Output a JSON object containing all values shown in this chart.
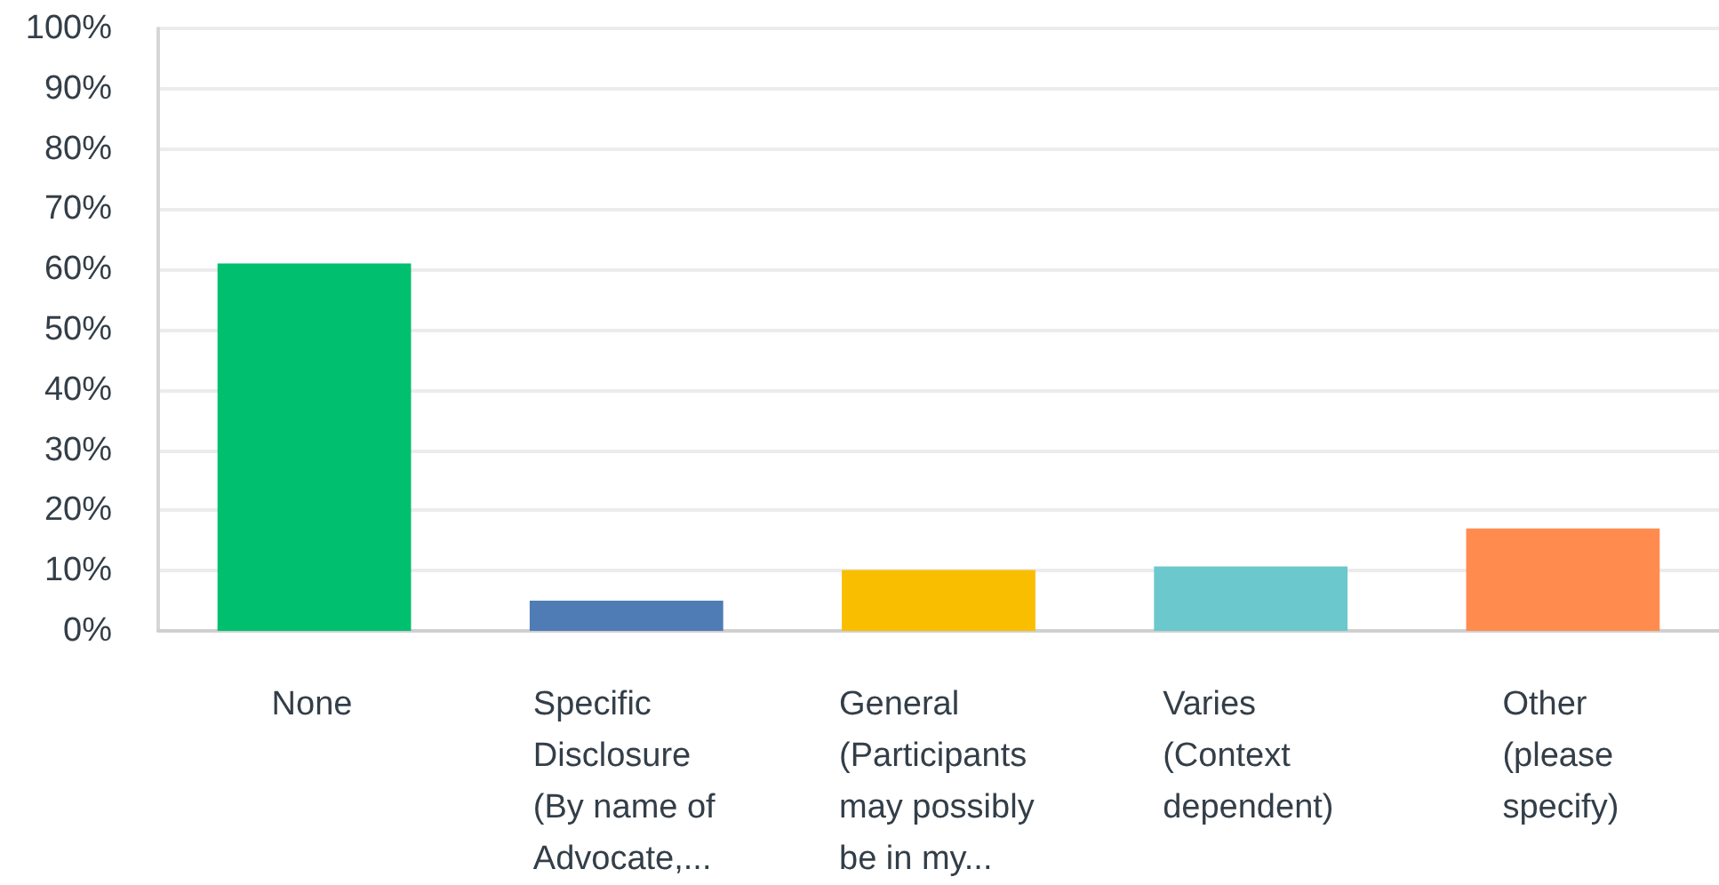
{
  "chart_data": {
    "type": "bar",
    "categories": [
      "None",
      "Specific\nDisclosure\n(By name of\nAdvocate,...",
      "General\n(Participants\nmay possibly\nbe in my...",
      "Varies\n(Context\ndependent)",
      "Other\n(please\nspecify)"
    ],
    "values": [
      61,
      5,
      10.1,
      10.7,
      17
    ],
    "colors": [
      "#00bf6f",
      "#507cb6",
      "#f9be00",
      "#6bc8cd",
      "#ff8b4f"
    ],
    "ylim": [
      0,
      100
    ],
    "yticks": [
      {
        "value": 0,
        "label": "0%"
      },
      {
        "value": 10,
        "label": "10%"
      },
      {
        "value": 20,
        "label": "20%"
      },
      {
        "value": 30,
        "label": "30%"
      },
      {
        "value": 40,
        "label": "40%"
      },
      {
        "value": 50,
        "label": "50%"
      },
      {
        "value": 60,
        "label": "60%"
      },
      {
        "value": 70,
        "label": "70%"
      },
      {
        "value": 80,
        "label": "80%"
      },
      {
        "value": 90,
        "label": "90%"
      },
      {
        "value": 100,
        "label": "100%"
      }
    ],
    "grid": "y"
  }
}
